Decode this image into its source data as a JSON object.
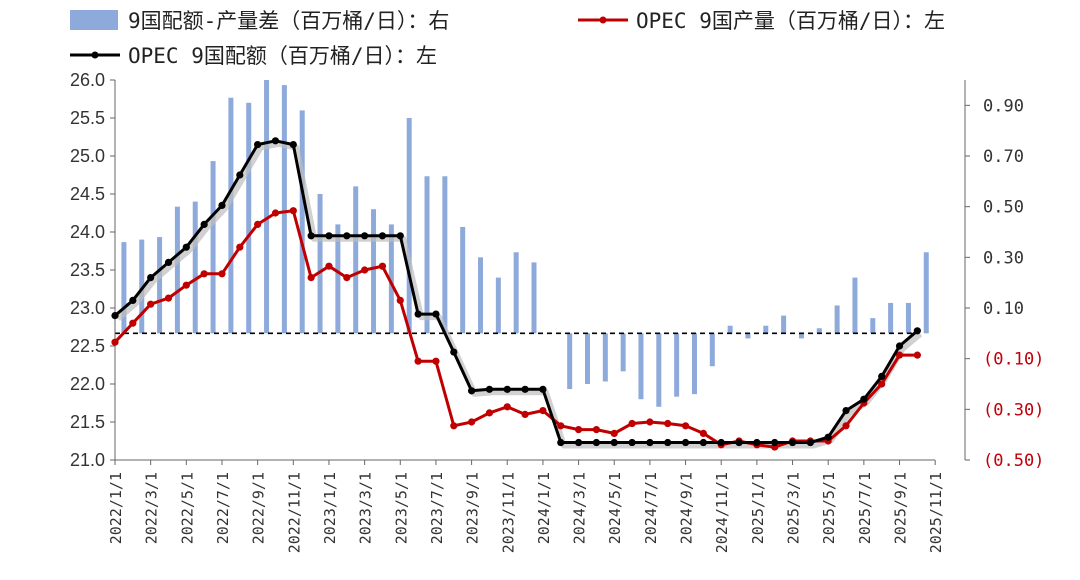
{
  "chart_data": {
    "type": "bar+line",
    "legend": [
      {
        "label": "9国配额-产量差（百万桶/日）：右",
        "kind": "bar",
        "color": "#8eaadb"
      },
      {
        "label": "OPEC 9国产量（百万桶/日）：左",
        "kind": "line",
        "color": "#c00000"
      },
      {
        "label": "OPEC 9国配额（百万桶/日）：左",
        "kind": "line",
        "color": "#000000"
      }
    ],
    "x_tick_labels": [
      "2022/1/1",
      "2022/3/1",
      "2022/5/1",
      "2022/7/1",
      "2022/9/1",
      "2022/11/1",
      "2023/1/1",
      "2023/3/1",
      "2023/5/1",
      "2023/7/1",
      "2023/9/1",
      "2023/11/1",
      "2024/1/1",
      "2024/3/1",
      "2024/5/1",
      "2024/7/1",
      "2024/9/1",
      "2024/11/1",
      "2025/1/1",
      "2025/3/1",
      "2025/5/1",
      "2025/7/1",
      "2025/9/1",
      "2025/11/1"
    ],
    "left_axis": {
      "ylim": [
        21.0,
        26.0
      ],
      "ticks": [
        "21.0",
        "21.5",
        "22.0",
        "22.5",
        "23.0",
        "23.5",
        "24.0",
        "24.5",
        "25.0",
        "25.5",
        "26.0"
      ]
    },
    "right_axis": {
      "ylim": [
        -0.5,
        1.0
      ],
      "ticks": [
        "(0.50)",
        "(0.30)",
        "(0.10)",
        "0.10",
        "0.30",
        "0.50",
        "0.70",
        "0.90"
      ]
    },
    "x": [
      "2022/1",
      "2022/2",
      "2022/3",
      "2022/4",
      "2022/5",
      "2022/6",
      "2022/7",
      "2022/8",
      "2022/9",
      "2022/10",
      "2022/11",
      "2022/12",
      "2023/1",
      "2023/2",
      "2023/3",
      "2023/4",
      "2023/5",
      "2023/6",
      "2023/7",
      "2023/8",
      "2023/9",
      "2023/10",
      "2023/11",
      "2023/12",
      "2024/1",
      "2024/2",
      "2024/3",
      "2024/4",
      "2024/5",
      "2024/6",
      "2024/7",
      "2024/8",
      "2024/9",
      "2024/10",
      "2024/11",
      "2024/12",
      "2025/1",
      "2025/2",
      "2025/3",
      "2025/4",
      "2025/5",
      "2025/6",
      "2025/7",
      "2025/8",
      "2025/9",
      "2025/10"
    ],
    "series": [
      {
        "name": "OPEC 9国配额",
        "axis": "left",
        "color": "#000000",
        "values": [
          22.9,
          23.1,
          23.4,
          23.6,
          23.8,
          24.1,
          24.35,
          24.75,
          25.15,
          25.2,
          25.15,
          23.95,
          23.95,
          23.95,
          23.95,
          23.95,
          23.95,
          22.92,
          22.92,
          22.42,
          21.91,
          21.93,
          21.93,
          21.93,
          21.93,
          21.23,
          21.23,
          21.23,
          21.23,
          21.23,
          21.23,
          21.23,
          21.23,
          21.23,
          21.23,
          21.23,
          21.23,
          21.23,
          21.23,
          21.23,
          21.3,
          21.65,
          21.8,
          22.1,
          22.5,
          22.7
        ]
      },
      {
        "name": "OPEC 9国产量",
        "axis": "left",
        "color": "#c00000",
        "values": [
          22.55,
          22.8,
          23.05,
          23.13,
          23.3,
          23.45,
          23.45,
          23.8,
          24.1,
          24.25,
          24.28,
          23.4,
          23.55,
          23.4,
          23.5,
          23.55,
          23.1,
          22.3,
          22.3,
          21.45,
          21.5,
          21.62,
          21.7,
          21.6,
          21.65,
          21.45,
          21.4,
          21.4,
          21.35,
          21.48,
          21.5,
          21.48,
          21.45,
          21.35,
          21.2,
          21.25,
          21.2,
          21.17,
          21.25,
          21.25,
          21.25,
          21.45,
          21.75,
          22.0,
          22.38,
          22.38
        ]
      },
      {
        "name": "9国配额-产量差",
        "axis": "right",
        "type": "bar",
        "color": "#8eaadb",
        "values": [
          0.36,
          0.37,
          0.38,
          0.5,
          0.52,
          0.68,
          0.93,
          0.91,
          1.0,
          0.98,
          0.88,
          0.55,
          0.43,
          0.58,
          0.49,
          0.43,
          0.85,
          0.62,
          0.62,
          0.42,
          0.3,
          0.22,
          0.32,
          0.28,
          0,
          -0.22,
          -0.2,
          -0.19,
          -0.15,
          -0.26,
          -0.29,
          -0.25,
          -0.24,
          -0.13,
          0.03,
          -0.02,
          0.03,
          0.07,
          -0.02,
          0.02,
          0.11,
          0.22,
          0.06,
          0.12,
          0.12,
          0.32
        ]
      }
    ]
  }
}
